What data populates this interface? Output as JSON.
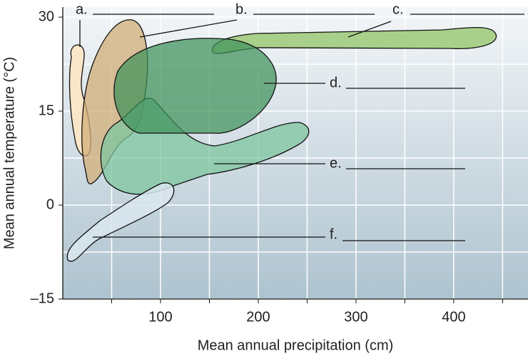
{
  "chart_data": {
    "type": "region",
    "xlabel": "Mean annual precipitation (cm)",
    "ylabel": "Mean annual  temperature (°C)",
    "xlim": [
      0,
      476
    ],
    "xticks": [
      100,
      200,
      300,
      400
    ],
    "xminor": [
      50,
      150,
      250,
      350,
      450
    ],
    "ylim": [
      -15,
      31.6
    ],
    "yticks": [
      {
        "value": -15,
        "label": "–15"
      },
      0,
      15,
      30
    ],
    "yminor": [
      -7.5,
      7.5,
      22.5
    ],
    "grid": true,
    "annotations": [
      "a.",
      "b.",
      "c.",
      "d.",
      "e.",
      "f."
    ]
  }
}
